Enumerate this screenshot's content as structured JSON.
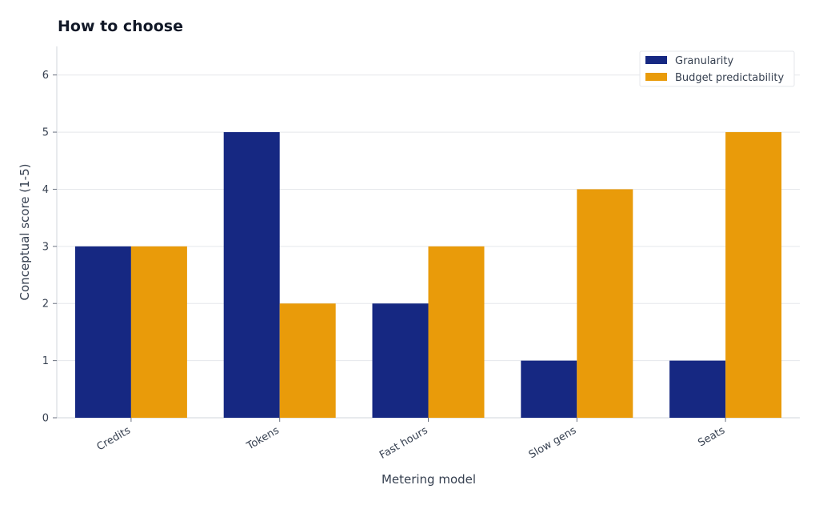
{
  "chart_data": {
    "type": "bar",
    "title": "How to choose",
    "xlabel": "Metering model",
    "ylabel": "Conceptual score (1-5)",
    "categories": [
      "Credits",
      "Tokens",
      "Fast hours",
      "Slow gens",
      "Seats"
    ],
    "series": [
      {
        "name": "Granularity",
        "color": "#162882",
        "values": [
          3,
          5,
          2,
          1,
          1
        ]
      },
      {
        "name": "Budget predictability",
        "color": "#E99B0A",
        "values": [
          3,
          2,
          3,
          4,
          5
        ]
      }
    ],
    "ylim": [
      0,
      6.5
    ],
    "yticks": [
      0,
      1,
      2,
      3,
      4,
      5,
      6
    ],
    "grid": true,
    "legend_position": "top-right"
  }
}
